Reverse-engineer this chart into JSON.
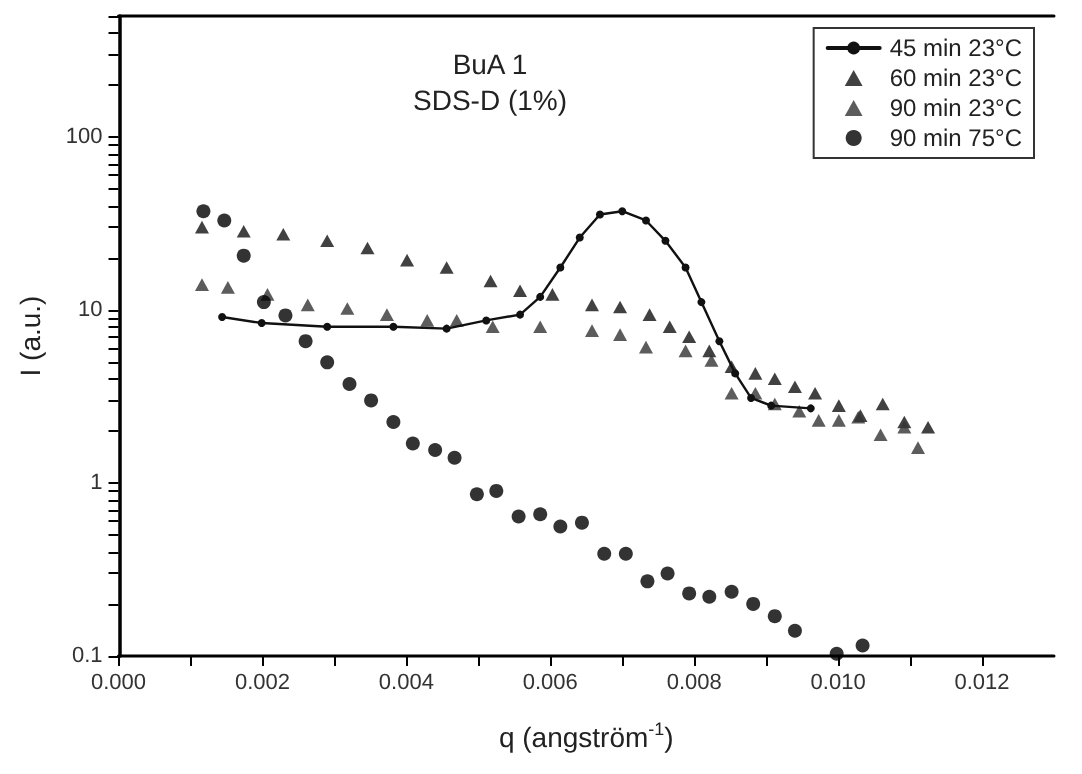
{
  "chart_data": {
    "type": "scatter",
    "title": "BuA 1",
    "subtitle": "SDS-D (1%)",
    "xlabel": "q (angström$^{-1}$)",
    "ylabel": "I (a.u.)",
    "log": "y",
    "grid": false,
    "legend": "top right",
    "xlim": [
      0,
      0.013
    ],
    "ylim": [
      0.1,
      500
    ],
    "xticks": [
      {
        "value": 0,
        "label": "0.000"
      },
      {
        "value": 0.001,
        "label": null
      },
      {
        "value": 0.002,
        "label": "0.002"
      },
      {
        "value": 0.003,
        "label": null
      },
      {
        "value": 0.004,
        "label": "0.004"
      },
      {
        "value": 0.005,
        "label": null
      },
      {
        "value": 0.006,
        "label": "0.006"
      },
      {
        "value": 0.007,
        "label": null
      },
      {
        "value": 0.008,
        "label": "0.008"
      },
      {
        "value": 0.009,
        "label": null
      },
      {
        "value": 0.01,
        "label": "0.010"
      },
      {
        "value": 0.011,
        "label": null
      },
      {
        "value": 0.012,
        "label": "0.012"
      }
    ],
    "yticks": [
      0.1,
      {
        "value": 0.2,
        "label": null
      },
      {
        "value": 0.3,
        "label": null
      },
      {
        "value": 0.4,
        "label": null
      },
      {
        "value": 0.5,
        "label": null
      },
      {
        "value": 0.6,
        "label": null
      },
      {
        "value": 0.7,
        "label": null
      },
      {
        "value": 0.8,
        "label": null
      },
      {
        "value": 0.9,
        "label": null
      },
      1,
      {
        "value": 2,
        "label": null
      },
      {
        "value": 3,
        "label": null
      },
      {
        "value": 4,
        "label": null
      },
      {
        "value": 5,
        "label": null
      },
      {
        "value": 6,
        "label": null
      },
      {
        "value": 7,
        "label": null
      },
      {
        "value": 8,
        "label": null
      },
      {
        "value": 9,
        "label": null
      },
      10,
      {
        "value": 20,
        "label": null
      },
      {
        "value": 30,
        "label": null
      },
      {
        "value": 40,
        "label": null
      },
      {
        "value": 50,
        "label": null
      },
      {
        "value": 60,
        "label": null
      },
      {
        "value": 70,
        "label": null
      },
      {
        "value": 80,
        "label": null
      },
      {
        "value": 90,
        "label": null
      },
      100,
      {
        "value": 200,
        "label": null
      },
      {
        "value": 300,
        "label": null
      },
      {
        "value": 400,
        "label": null
      },
      {
        "value": 500,
        "label": null
      }
    ],
    "series": [
      {
        "name": "45 min 23°C",
        "type": "line",
        "marker": "circle",
        "line_style": "solid",
        "color": "#111111",
        "x": [
          0.00144,
          0.00199,
          0.0029,
          0.00382,
          0.00456,
          0.00511,
          0.00558,
          0.00586,
          0.00614,
          0.00641,
          0.00669,
          0.007,
          0.00733,
          0.0076,
          0.00788,
          0.0081,
          0.00835,
          0.00857,
          0.00879,
          0.00907,
          0.00962
        ],
        "values": [
          9.1,
          8.4,
          8,
          8,
          7.8,
          8.7,
          9.4,
          11.9,
          17.6,
          26.2,
          35.6,
          37.2,
          32.9,
          25.1,
          17.6,
          11.1,
          6.6,
          4.3,
          3.1,
          2.8,
          2.7
        ]
      },
      {
        "name": "60 min 23°C",
        "marker": "triangle",
        "color": "#111111",
        "x": [
          0.00116,
          0.00174,
          0.00229,
          0.0029,
          0.00346,
          0.00401,
          0.00456,
          0.00517,
          0.00558,
          0.00603,
          0.00658,
          0.00697,
          0.00738,
          0.00766,
          0.00793,
          0.00821,
          0.00852,
          0.00885,
          0.00912,
          0.0094,
          0.00968,
          0.01001,
          0.01031,
          0.01062,
          0.01092,
          0.01125
        ],
        "values": [
          30.1,
          28.5,
          27.4,
          25.1,
          22.8,
          19.4,
          17.6,
          14.7,
          12.9,
          12.3,
          10.7,
          10.4,
          9.4,
          8,
          7,
          5.8,
          4.7,
          4.3,
          4,
          3.6,
          3.3,
          2.8,
          2.45,
          2.86,
          2.25,
          2.1
        ]
      },
      {
        "name": "90 min 23°C",
        "marker": "triangle",
        "color": "#333333",
        "x": [
          0.00116,
          0.00152,
          0.00207,
          0.00263,
          0.00318,
          0.00373,
          0.00429,
          0.0047,
          0.0052,
          0.00586,
          0.00658,
          0.00697,
          0.00733,
          0.00788,
          0.00824,
          0.00852,
          0.00885,
          0.00912,
          0.00946,
          0.00973,
          0.01001,
          0.01028,
          0.01059,
          0.01092,
          0.01111
        ],
        "values": [
          14,
          13.5,
          12.3,
          10.7,
          10.2,
          9.4,
          8.7,
          8.7,
          8,
          8,
          7.6,
          7.2,
          6.1,
          5.8,
          5.1,
          3.3,
          3.3,
          2.86,
          2.6,
          2.3,
          2.3,
          2.4,
          1.9,
          2.1,
          1.6
        ]
      },
      {
        "name": "90 min 75°C",
        "marker": "circle",
        "color": "#000000",
        "x": [
          0.00118,
          0.00147,
          0.00174,
          0.00202,
          0.00232,
          0.0026,
          0.0029,
          0.00321,
          0.00351,
          0.00382,
          0.00409,
          0.0044,
          0.00467,
          0.00498,
          0.00525,
          0.00556,
          0.00586,
          0.00614,
          0.00644,
          0.00675,
          0.00705,
          0.00735,
          0.00763,
          0.00793,
          0.00821,
          0.00852,
          0.00882,
          0.00912,
          0.0094,
          0.00998,
          0.01034
        ],
        "values": [
          37.2,
          32.9,
          20.6,
          11.1,
          9.3,
          6.6,
          4.98,
          3.73,
          3,
          2.25,
          1.69,
          1.55,
          1.4,
          0.86,
          0.9,
          0.64,
          0.66,
          0.56,
          0.59,
          0.39,
          0.39,
          0.27,
          0.3,
          0.23,
          0.22,
          0.235,
          0.2,
          0.17,
          0.14,
          0.103,
          0.115
        ]
      }
    ]
  }
}
